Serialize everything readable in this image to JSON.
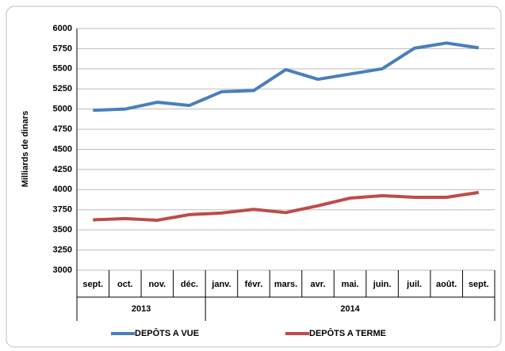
{
  "chart_data": {
    "type": "line",
    "y_label": "Milliards de dinars",
    "categories": [
      "sept.",
      "oct.",
      "nov.",
      "déc.",
      "janv.",
      "févr.",
      "mars.",
      "avr.",
      "mai.",
      "juin.",
      "juil.",
      "août.",
      "sept."
    ],
    "category_groups": [
      {
        "label": "2013",
        "span": 4
      },
      {
        "label": "2014",
        "span": 9
      }
    ],
    "series": [
      {
        "name": "DEPÔTS A VUE",
        "color": "#4a7ebb",
        "values": [
          4985,
          5000,
          5085,
          5045,
          5215,
          5230,
          5490,
          5370,
          5435,
          5500,
          5755,
          5820,
          5760
        ]
      },
      {
        "name": "DEPÔTS A TERME",
        "color": "#be4b48",
        "values": [
          3625,
          3640,
          3620,
          3690,
          3710,
          3755,
          3715,
          3800,
          3895,
          3925,
          3905,
          3905,
          3965
        ]
      }
    ],
    "ylim": [
      3000,
      6000
    ],
    "yticks": [
      3000,
      3250,
      3500,
      3750,
      4000,
      4250,
      4500,
      4750,
      5000,
      5250,
      5500,
      5750,
      6000
    ],
    "grid": true,
    "legend": "bottom"
  }
}
